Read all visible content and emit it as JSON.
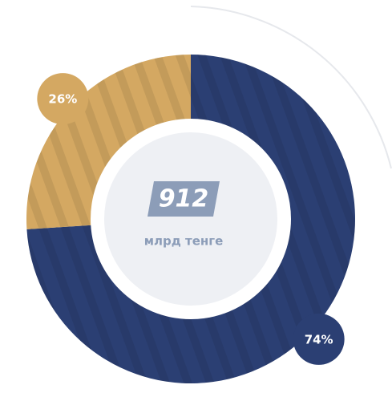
{
  "chart_data": {
    "type": "pie",
    "categories": [
      "",
      ""
    ],
    "values": [
      74,
      26
    ],
    "value_labels": [
      "74%",
      "26%"
    ],
    "colors": [
      "#2b3f73",
      "#d4a862"
    ],
    "total": 912,
    "unit": "млрд тенге"
  }
}
